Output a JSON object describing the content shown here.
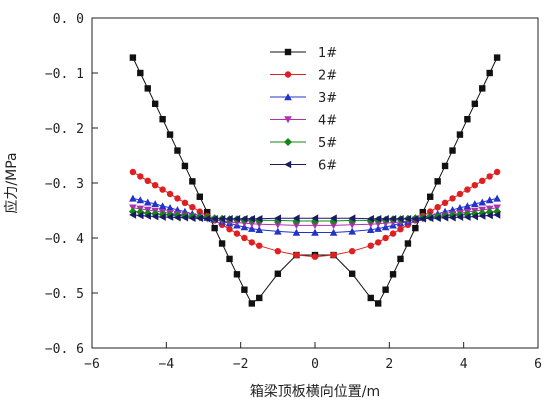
{
  "chart_data": {
    "type": "line",
    "title": "",
    "xlabel": "箱梁顶板横向位置/m",
    "ylabel": "应力/MPa",
    "xlim": [
      -6,
      6
    ],
    "ylim": [
      -0.6,
      0.0
    ],
    "x_ticks": [
      -6,
      -4,
      -2,
      0,
      2,
      4,
      6
    ],
    "x_tick_labels": [
      "−6",
      "−4",
      "−2",
      "0",
      "2",
      "4",
      "6"
    ],
    "y_ticks": [
      0.0,
      -0.1,
      -0.2,
      -0.3,
      -0.4,
      -0.5,
      -0.6
    ],
    "y_tick_labels": [
      "0. 0",
      "−0. 1",
      "−0. 2",
      "−0. 3",
      "−0. 4",
      "−0. 5",
      "−0. 6"
    ],
    "grid": false,
    "legend_position": "top-center",
    "x": [
      -4.9,
      -4.7,
      -4.5,
      -4.3,
      -4.1,
      -3.9,
      -3.7,
      -3.5,
      -3.3,
      -3.1,
      -2.9,
      -2.7,
      -2.5,
      -2.3,
      -2.1,
      -1.9,
      -1.7,
      -1.5,
      -1.0,
      -0.5,
      0.0,
      0.5,
      1.0,
      1.5,
      1.7,
      1.9,
      2.1,
      2.3,
      2.5,
      2.7,
      2.9,
      3.1,
      3.3,
      3.5,
      3.7,
      3.9,
      4.1,
      4.3,
      4.5,
      4.7,
      4.9
    ],
    "series": [
      {
        "name": "1#",
        "color": "#111111",
        "marker": "square",
        "values": [
          -0.072,
          -0.1,
          -0.128,
          -0.156,
          -0.184,
          -0.212,
          -0.241,
          -0.269,
          -0.297,
          -0.325,
          -0.353,
          -0.382,
          -0.41,
          -0.438,
          -0.466,
          -0.494,
          -0.519,
          -0.509,
          -0.465,
          -0.431,
          -0.431,
          -0.431,
          -0.465,
          -0.509,
          -0.519,
          -0.494,
          -0.466,
          -0.438,
          -0.41,
          -0.382,
          -0.353,
          -0.325,
          -0.297,
          -0.269,
          -0.241,
          -0.212,
          -0.184,
          -0.156,
          -0.128,
          -0.1,
          -0.072
        ]
      },
      {
        "name": "2#",
        "color": "#e02020",
        "marker": "circle",
        "values": [
          -0.28,
          -0.288,
          -0.296,
          -0.304,
          -0.312,
          -0.32,
          -0.328,
          -0.336,
          -0.344,
          -0.352,
          -0.36,
          -0.368,
          -0.376,
          -0.384,
          -0.392,
          -0.4,
          -0.408,
          -0.414,
          -0.424,
          -0.431,
          -0.434,
          -0.431,
          -0.424,
          -0.414,
          -0.408,
          -0.4,
          -0.392,
          -0.384,
          -0.376,
          -0.368,
          -0.36,
          -0.352,
          -0.344,
          -0.336,
          -0.328,
          -0.32,
          -0.312,
          -0.304,
          -0.296,
          -0.288,
          -0.28
        ]
      },
      {
        "name": "3#",
        "color": "#2233cc",
        "marker": "triangle-up",
        "values": [
          -0.328,
          -0.331,
          -0.335,
          -0.338,
          -0.342,
          -0.345,
          -0.349,
          -0.352,
          -0.356,
          -0.359,
          -0.363,
          -0.366,
          -0.37,
          -0.373,
          -0.377,
          -0.38,
          -0.383,
          -0.385,
          -0.388,
          -0.39,
          -0.39,
          -0.39,
          -0.388,
          -0.385,
          -0.383,
          -0.38,
          -0.377,
          -0.373,
          -0.37,
          -0.366,
          -0.363,
          -0.359,
          -0.356,
          -0.352,
          -0.349,
          -0.345,
          -0.342,
          -0.338,
          -0.335,
          -0.331,
          -0.328
        ]
      },
      {
        "name": "4#",
        "color": "#b030b0",
        "marker": "triangle-down",
        "values": [
          -0.345,
          -0.347,
          -0.349,
          -0.351,
          -0.353,
          -0.355,
          -0.357,
          -0.359,
          -0.361,
          -0.363,
          -0.365,
          -0.367,
          -0.369,
          -0.371,
          -0.372,
          -0.373,
          -0.374,
          -0.375,
          -0.376,
          -0.377,
          -0.377,
          -0.377,
          -0.376,
          -0.375,
          -0.374,
          -0.373,
          -0.372,
          -0.371,
          -0.369,
          -0.367,
          -0.365,
          -0.363,
          -0.361,
          -0.359,
          -0.357,
          -0.355,
          -0.353,
          -0.351,
          -0.349,
          -0.347,
          -0.345
        ]
      },
      {
        "name": "5#",
        "color": "#118811",
        "marker": "diamond",
        "values": [
          -0.352,
          -0.353,
          -0.355,
          -0.356,
          -0.357,
          -0.358,
          -0.359,
          -0.36,
          -0.361,
          -0.362,
          -0.363,
          -0.364,
          -0.365,
          -0.366,
          -0.366,
          -0.367,
          -0.367,
          -0.368,
          -0.368,
          -0.369,
          -0.369,
          -0.369,
          -0.368,
          -0.368,
          -0.367,
          -0.367,
          -0.366,
          -0.366,
          -0.365,
          -0.364,
          -0.363,
          -0.362,
          -0.361,
          -0.36,
          -0.359,
          -0.358,
          -0.357,
          -0.356,
          -0.355,
          -0.353,
          -0.352
        ]
      },
      {
        "name": "6#",
        "color": "#1a1a66",
        "marker": "triangle-left",
        "values": [
          -0.358,
          -0.359,
          -0.36,
          -0.361,
          -0.362,
          -0.362,
          -0.363,
          -0.363,
          -0.364,
          -0.364,
          -0.365,
          -0.365,
          -0.365,
          -0.365,
          -0.365,
          -0.365,
          -0.365,
          -0.365,
          -0.364,
          -0.364,
          -0.364,
          -0.364,
          -0.364,
          -0.365,
          -0.365,
          -0.365,
          -0.365,
          -0.365,
          -0.365,
          -0.365,
          -0.365,
          -0.364,
          -0.364,
          -0.363,
          -0.363,
          -0.362,
          -0.362,
          -0.361,
          -0.36,
          -0.359,
          -0.358
        ]
      }
    ]
  }
}
